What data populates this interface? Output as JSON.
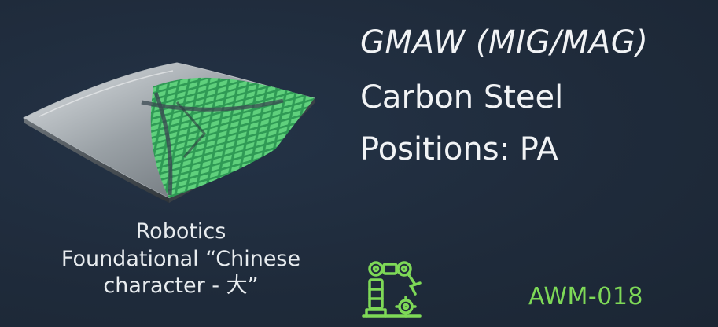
{
  "header": {
    "process": "GMAW (MIG/MAG)",
    "material": "Carbon Steel",
    "positions": "Positions: PA"
  },
  "caption": {
    "line1": "Robotics",
    "line2": "Foundational “Chinese",
    "line3": "character - 大”"
  },
  "code": "AWM-018",
  "icons": {
    "plate": "welded-plate-illustration",
    "robot": "robot-arm-icon"
  },
  "colors": {
    "background": "#1f2b3b",
    "text": "#f1f3f5",
    "accent": "#7ed957"
  }
}
